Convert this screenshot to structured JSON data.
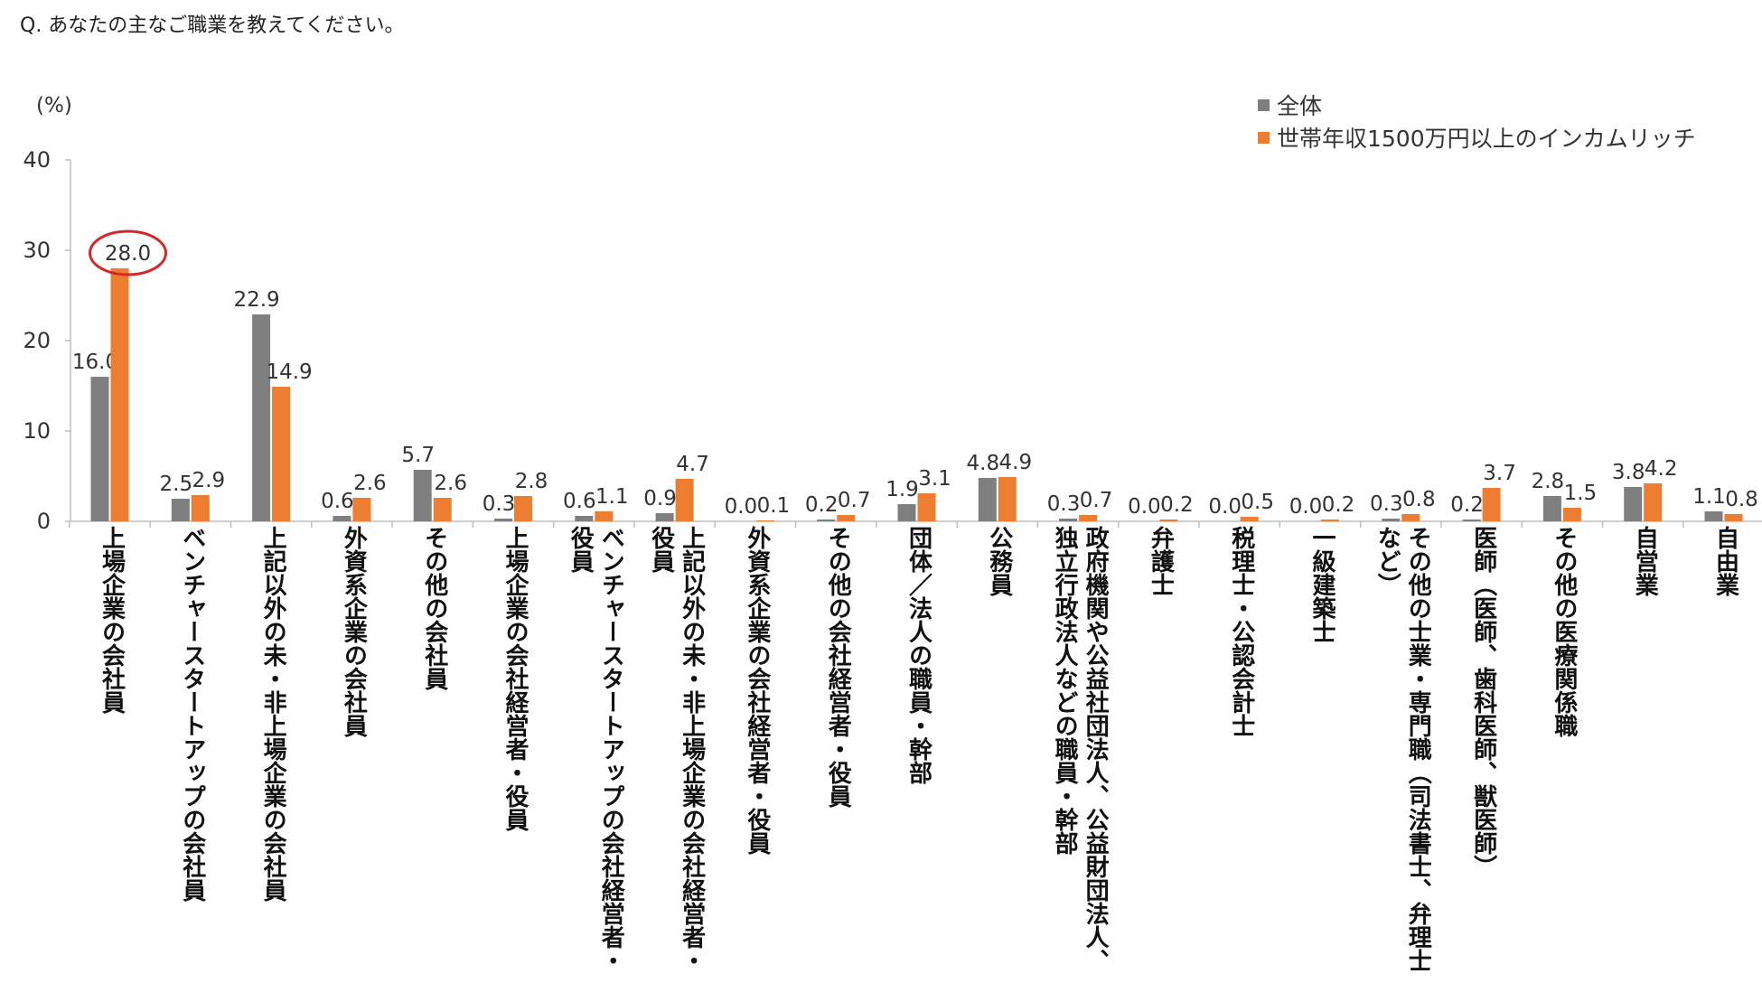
{
  "question": "Q. あなたの主なご職業を教えてください。",
  "unit_label": "(%)",
  "colors": {
    "overall": "#7f7f7f",
    "rich": "#ed7d31",
    "highlight": "#d62728"
  },
  "chart_data": {
    "type": "bar",
    "ylim": [
      0,
      40
    ],
    "yticks": [
      0,
      10,
      20,
      30,
      40
    ],
    "grid": false,
    "legend_position": "top-right",
    "categories": [
      "上場企業の会社員",
      "ベンチャースタートアップの会社員",
      "上記以外の未・非上場企業の会社員",
      "外資系企業の会社員",
      "その他の会社員",
      "上場企業の会社経営者・役員",
      "ベンチャースタートアップの会社経営者・役員",
      "上記以外の未・非上場企業の会社経営者・役員",
      "外資系企業の会社経営者・役員",
      "その他の会社経営者・役員",
      "団体／法人の職員・幹部",
      "公務員",
      "政府機関や公益社団法人、公益財団法人、独立行政法人などの職員・幹部",
      "弁護士",
      "税理士・公認会計士",
      "一級建築士",
      "その他の士業・専門職（司法書士、弁理士など）",
      "医師（医師、歯科医師、獣医師）",
      "その他の医療関係職",
      "自営業",
      "自由業"
    ],
    "series": [
      {
        "name": "全体",
        "values": [
          16.0,
          2.5,
          22.9,
          0.6,
          5.7,
          0.3,
          0.6,
          0.9,
          0.0,
          0.2,
          1.9,
          4.8,
          0.3,
          0.0,
          0.0,
          0.0,
          0.3,
          0.2,
          2.8,
          3.8,
          1.1
        ],
        "labels": [
          "16.0",
          "2.5",
          "22.9",
          "0.6",
          "5.7",
          "0.3",
          "0.6",
          "0.9",
          "0.0",
          "0.2",
          "1.9",
          "4.8",
          "0.3",
          "0.0",
          "0.0",
          "0.0",
          "0.3",
          "0.2",
          "2.8",
          "3.8",
          "1.1"
        ]
      },
      {
        "name": "世帯年収1500万円以上のインカムリッチ",
        "values": [
          28.0,
          2.9,
          14.9,
          2.6,
          2.6,
          2.8,
          1.1,
          4.7,
          0.1,
          0.7,
          3.1,
          4.9,
          0.7,
          0.2,
          0.5,
          0.2,
          0.8,
          3.7,
          1.5,
          4.2,
          0.8
        ],
        "labels": [
          "28.0",
          "2.9",
          "14.9",
          "2.6",
          "2.6",
          "2.8",
          "1.1",
          "4.7",
          "0.1",
          "0.7",
          "3.1",
          "4.9",
          "0.7",
          "0.2",
          "0.5",
          "0.2",
          "0.8",
          "3.7",
          "1.5",
          "4.2",
          "0.8"
        ]
      }
    ],
    "highlight": {
      "series": 1,
      "index": 0
    }
  }
}
